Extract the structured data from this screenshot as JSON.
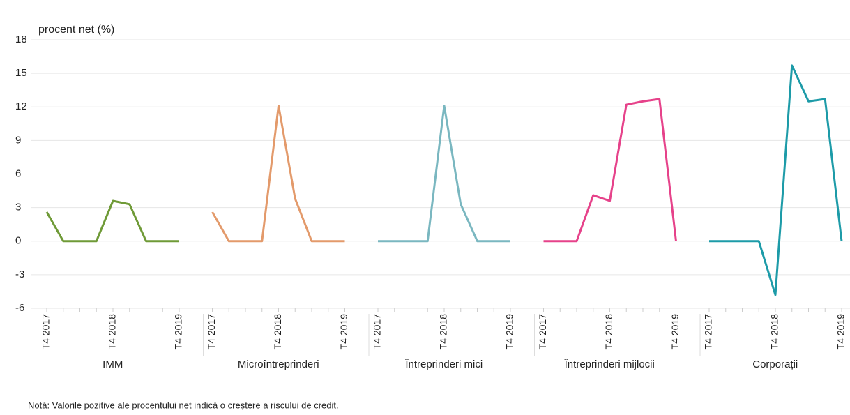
{
  "chart_data": {
    "type": "line",
    "y_label": "procent net (%)",
    "note": "Notă: Valorile pozitive ale procentului net indică o creștere a riscului de credit.",
    "ylim": [
      -6,
      18
    ],
    "yticks": [
      18,
      15,
      12,
      9,
      6,
      3,
      0,
      -3,
      -6
    ],
    "grid": true,
    "groups": [
      {
        "name": "IMM",
        "color": "#6f9a37",
        "categories": [
          "T4 2017",
          null,
          null,
          null,
          "T4 2018",
          null,
          null,
          null,
          "T4 2019"
        ],
        "values": [
          2.6,
          0,
          0,
          0,
          3.6,
          3.3,
          0,
          0,
          0
        ]
      },
      {
        "name": "Microîntreprinderi",
        "color": "#e39a6b",
        "categories": [
          "T4 2017",
          null,
          null,
          null,
          "T4 2018",
          null,
          null,
          null,
          "T4 2019"
        ],
        "values": [
          2.6,
          0,
          0,
          0,
          12.1,
          3.8,
          0,
          0,
          0
        ]
      },
      {
        "name": "Întreprinderi mici",
        "color": "#7ab7c0",
        "categories": [
          "T4 2017",
          null,
          null,
          null,
          "T4 2018",
          null,
          null,
          null,
          "T4 2019"
        ],
        "values": [
          0,
          0,
          0,
          0,
          12.1,
          3.3,
          0,
          0,
          0
        ]
      },
      {
        "name": "Întreprinderi mijlocii",
        "color": "#e6428a",
        "categories": [
          "T4 2017",
          null,
          null,
          null,
          "T4 2018",
          null,
          null,
          null,
          "T4 2019"
        ],
        "values": [
          0,
          0,
          0,
          4.1,
          3.6,
          12.2,
          12.5,
          12.7,
          0
        ]
      },
      {
        "name": "Corporații",
        "color": "#1d9ba8",
        "categories": [
          "T4 2017",
          null,
          null,
          null,
          "T4 2018",
          null,
          null,
          null,
          "T4 2019"
        ],
        "values": [
          0,
          0,
          0,
          0,
          -4.8,
          15.7,
          12.5,
          12.7,
          0
        ]
      }
    ]
  }
}
